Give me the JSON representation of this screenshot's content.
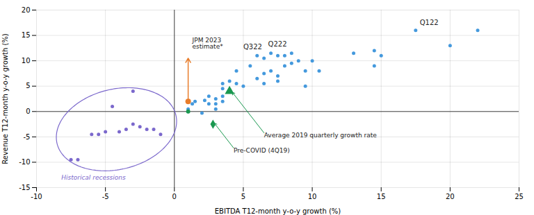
{
  "chart_data": {
    "type": "scatter",
    "xlabel": "EBITDA T12-month y-o-y growth (%)",
    "ylabel": "Revenue T12-month y-o-y growth (%)",
    "xlim": [
      -10,
      25
    ],
    "ylim": [
      -15,
      20
    ],
    "xticks": [
      -10,
      -5,
      0,
      5,
      10,
      15,
      20,
      25
    ],
    "yticks": [
      -15,
      -10,
      -5,
      0,
      5,
      10,
      15,
      20
    ],
    "grid": true,
    "series": [
      {
        "color": "#7B68CC",
        "marker": "circle",
        "points": [
          [
            -7.0,
            -9.5
          ],
          [
            -7.5,
            -9.5
          ],
          [
            -6.0,
            -4.5
          ],
          [
            -5.5,
            -4.5
          ],
          [
            -5.0,
            -4.0
          ],
          [
            -4.5,
            1.0
          ],
          [
            -4.0,
            -4.0
          ],
          [
            -3.5,
            -3.5
          ],
          [
            -3.0,
            -2.5
          ],
          [
            -3.0,
            4.0
          ],
          [
            -2.5,
            -3.0
          ],
          [
            -2.0,
            -3.5
          ],
          [
            -1.5,
            -3.5
          ],
          [
            -1.0,
            -4.5
          ]
        ]
      },
      {
        "color": "#4499DD",
        "marker": "circle",
        "points": [
          [
            1.0,
            0.5
          ],
          [
            1.0,
            0.0
          ],
          [
            1.3,
            1.5
          ],
          [
            1.5,
            2.0
          ],
          [
            2.0,
            -0.3
          ],
          [
            2.2,
            2.2
          ],
          [
            2.5,
            1.5
          ],
          [
            2.5,
            3.0
          ],
          [
            3.0,
            2.5
          ],
          [
            3.0,
            1.5
          ],
          [
            3.0,
            0.5
          ],
          [
            3.5,
            4.5
          ],
          [
            3.5,
            5.5
          ],
          [
            3.5,
            3.0
          ],
          [
            3.5,
            2.0
          ],
          [
            4.0,
            6.0
          ],
          [
            4.5,
            8.0
          ],
          [
            4.5,
            5.5
          ],
          [
            5.0,
            5.0
          ],
          [
            5.5,
            9.0
          ],
          [
            6.0,
            11.0
          ],
          [
            6.0,
            6.5
          ],
          [
            6.5,
            10.5
          ],
          [
            6.5,
            7.5
          ],
          [
            6.5,
            5.5
          ],
          [
            7.0,
            11.5
          ],
          [
            7.0,
            8.0
          ],
          [
            7.5,
            11.0
          ],
          [
            7.5,
            7.0
          ],
          [
            7.5,
            6.0
          ],
          [
            8.0,
            11.0
          ],
          [
            8.0,
            9.0
          ],
          [
            8.5,
            11.5
          ],
          [
            8.5,
            9.5
          ],
          [
            9.0,
            10.0
          ],
          [
            9.5,
            8.0
          ],
          [
            9.5,
            5.0
          ],
          [
            10.0,
            10.0
          ],
          [
            10.5,
            8.0
          ],
          [
            13.0,
            11.5
          ],
          [
            14.5,
            9.0
          ],
          [
            14.5,
            12.0
          ],
          [
            15.0,
            11.0
          ],
          [
            17.5,
            16.0
          ],
          [
            20.0,
            13.0
          ],
          [
            22.0,
            16.0
          ]
        ]
      },
      {
        "color": "#E87D2B",
        "marker": "circle",
        "points": [
          [
            1.0,
            2.0
          ]
        ]
      },
      {
        "color": "#1A9850",
        "marker": "triangle",
        "points": [
          [
            4.0,
            4.0
          ]
        ]
      },
      {
        "color": "#1A9850",
        "marker": "diamond",
        "points": [
          [
            2.8,
            -2.5
          ]
        ]
      },
      {
        "color": "#1A9850",
        "marker": "circle",
        "points": [
          [
            1.0,
            0.0
          ]
        ]
      }
    ],
    "reference_lines": {
      "x": [
        0
      ],
      "y": [
        0
      ],
      "color": "#444444"
    },
    "ellipse": {
      "x": -4.2,
      "y": -3.5,
      "width": 8.5,
      "height": 16.5,
      "angle": -8,
      "color": "#7B68CC"
    },
    "arrows": [
      {
        "x1": 1.0,
        "y1": 2.0,
        "x2": 1.0,
        "y2": 10.5,
        "color": "#E87D2B"
      }
    ],
    "annotations": [
      {
        "text": "JPM 2023\nestimate*",
        "x": 1.3,
        "y": 14.5,
        "color": "#222222"
      },
      {
        "text": "Historical recessions",
        "x": -8.2,
        "y": -12.5,
        "color": "#7B68CC",
        "style": "italic"
      },
      {
        "text": "Average 2019 quarterly growth rate",
        "x": 6.5,
        "y": -4.2,
        "color": "#222222",
        "arrow": {
          "x": 4.2,
          "y": 3.8,
          "color": "#1A9850"
        }
      },
      {
        "text": "Pre-COVID (4Q19)",
        "x": 4.3,
        "y": -7.2,
        "color": "#222222",
        "arrow": {
          "x": 2.9,
          "y": -2.3,
          "color": "#1A9850"
        }
      }
    ],
    "point_labels": [
      {
        "text": "Q122",
        "x": 17.8,
        "y": 17.0,
        "color": "#222222"
      },
      {
        "text": "Q222",
        "x": 6.8,
        "y": 12.8,
        "color": "#222222"
      },
      {
        "text": "Q322",
        "x": 5.0,
        "y": 12.3,
        "color": "#222222"
      }
    ]
  }
}
